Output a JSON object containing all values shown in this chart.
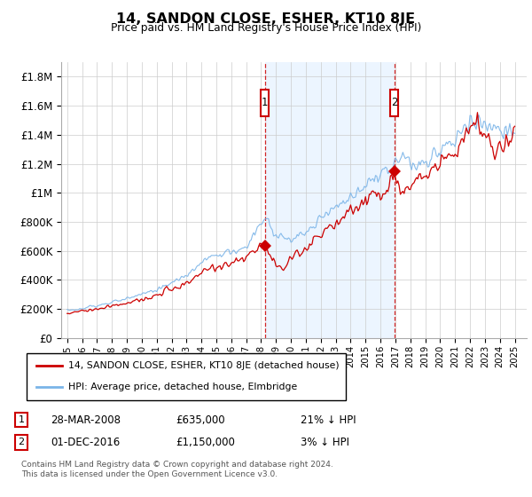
{
  "title": "14, SANDON CLOSE, ESHER, KT10 8JE",
  "subtitle": "Price paid vs. HM Land Registry's House Price Index (HPI)",
  "legend_line1": "14, SANDON CLOSE, ESHER, KT10 8JE (detached house)",
  "legend_line2": "HPI: Average price, detached house, Elmbridge",
  "transaction1_date": "28-MAR-2008",
  "transaction1_price": "£635,000",
  "transaction1_hpi": "21% ↓ HPI",
  "transaction2_date": "01-DEC-2016",
  "transaction2_price": "£1,150,000",
  "transaction2_hpi": "3% ↓ HPI",
  "footer": "Contains HM Land Registry data © Crown copyright and database right 2024.\nThis data is licensed under the Open Government Licence v3.0.",
  "hpi_color": "#7ab4e8",
  "price_color": "#cc0000",
  "shade_color": "#ddeeff",
  "vline_color": "#cc0000",
  "label_box_color": "#cc0000",
  "ylim_min": 0,
  "ylim_max": 1900000,
  "yticks": [
    0,
    200000,
    400000,
    600000,
    800000,
    1000000,
    1200000,
    1400000,
    1600000,
    1800000
  ],
  "ytick_labels": [
    "£0",
    "£200K",
    "£400K",
    "£600K",
    "£800K",
    "£1M",
    "£1.2M",
    "£1.4M",
    "£1.6M",
    "£1.8M"
  ],
  "t1_year": 2008.25,
  "t2_year": 2016.92,
  "t1_price": 635000,
  "t2_price": 1150000,
  "year_start": 1995,
  "year_end": 2025
}
